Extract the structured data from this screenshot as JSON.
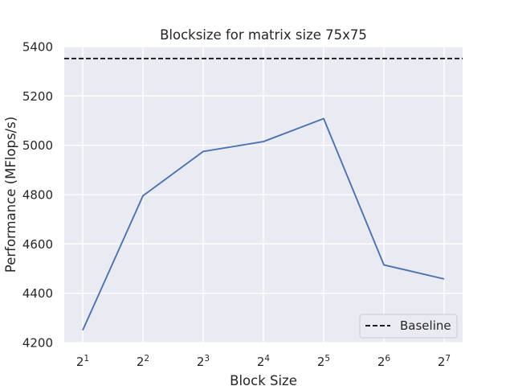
{
  "chart_data": {
    "type": "line",
    "title": "Blocksize for matrix size 75x75",
    "xlabel": "Block Size",
    "ylabel": "Performance (MFlops/s)",
    "x_tick_labels": [
      {
        "base": "2",
        "exp": "1"
      },
      {
        "base": "2",
        "exp": "2"
      },
      {
        "base": "2",
        "exp": "3"
      },
      {
        "base": "2",
        "exp": "4"
      },
      {
        "base": "2",
        "exp": "5"
      },
      {
        "base": "2",
        "exp": "6"
      },
      {
        "base": "2",
        "exp": "7"
      }
    ],
    "x": [
      2,
      4,
      8,
      16,
      32,
      64,
      128
    ],
    "x_scale": "log2",
    "ylim": [
      4200,
      5400
    ],
    "yticks": [
      4200,
      4400,
      4600,
      4800,
      5000,
      5200,
      5400
    ],
    "grid": true,
    "series": [
      {
        "values": [
          4250,
          4795,
          4975,
          5015,
          5108,
          4515,
          4458
        ],
        "color": "#4c72b0",
        "style": "solid"
      }
    ],
    "baseline": {
      "name": "Baseline",
      "value": 5352,
      "color": "#000000",
      "style": "dashed"
    },
    "legend_position": "bottom-right",
    "background_color": "#eaeaf2"
  }
}
